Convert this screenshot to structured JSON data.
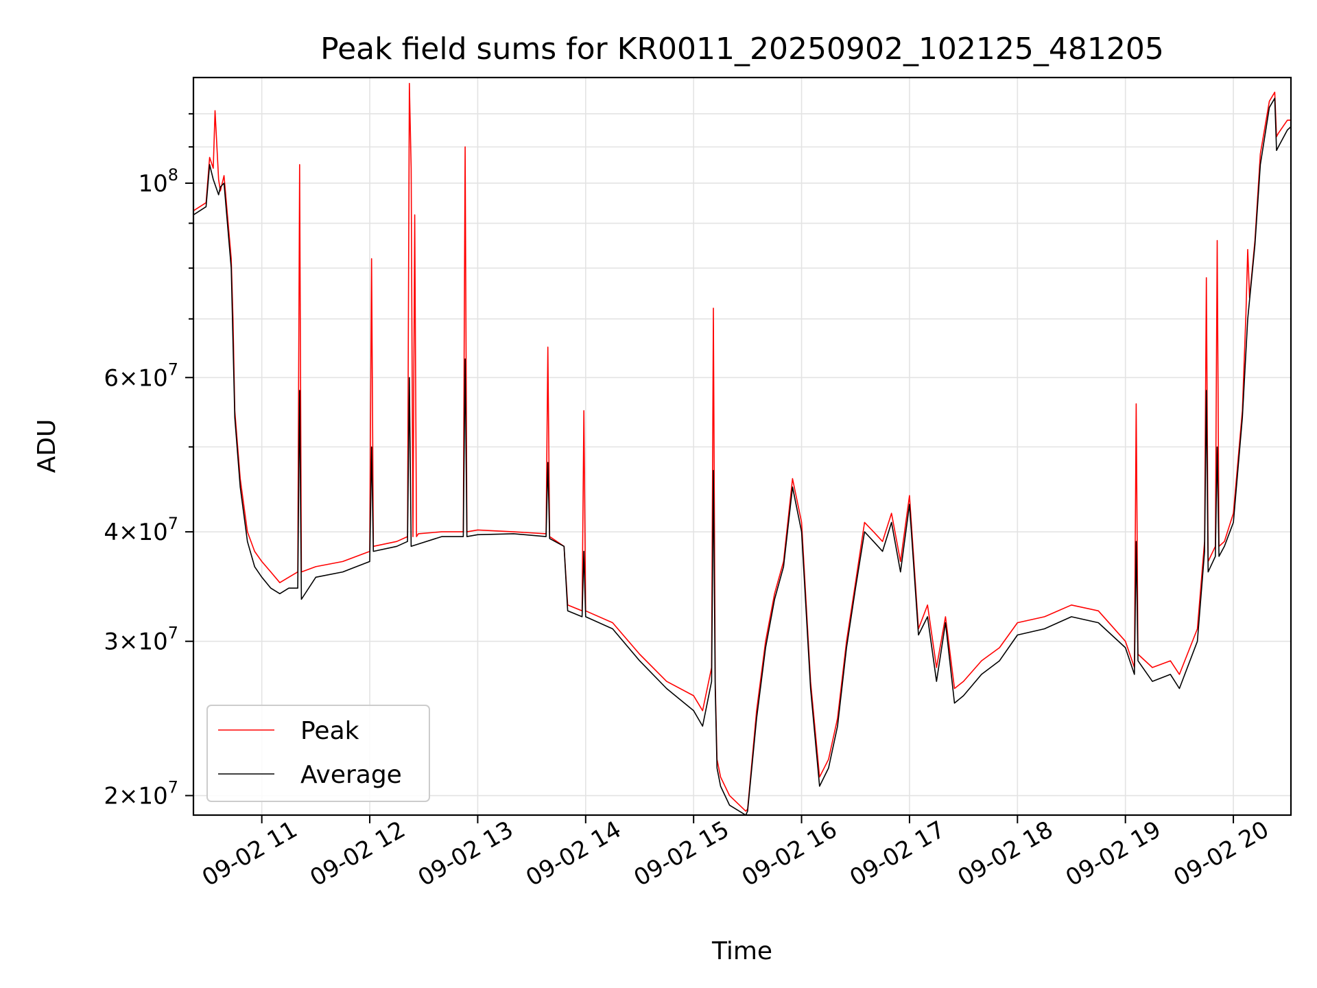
{
  "chart_data": {
    "type": "line",
    "title": "Peak field sums for KR0011_20250902_102125_481205",
    "xlabel": "Time",
    "ylabel": "ADU",
    "yscale": "log",
    "xlim": [
      "2025-09-02 10:22",
      "2025-09-02 20:32"
    ],
    "ylim": [
      19000000,
      132000000
    ],
    "grid": true,
    "legend_position": "lower-left",
    "x_tick_labels": [
      "09-02 11",
      "09-02 12",
      "09-02 13",
      "09-02 14",
      "09-02 15",
      "09-02 16",
      "09-02 17",
      "09-02 18",
      "09-02 19",
      "09-02 20"
    ],
    "x_ticks": [
      "2025-09-02 11:00",
      "2025-09-02 12:00",
      "2025-09-02 13:00",
      "2025-09-02 14:00",
      "2025-09-02 15:00",
      "2025-09-02 16:00",
      "2025-09-02 17:00",
      "2025-09-02 18:00",
      "2025-09-02 19:00",
      "2025-09-02 20:00"
    ],
    "y_ticks": [
      {
        "value": 20000000,
        "mantissa": "2",
        "exponent": "7"
      },
      {
        "value": 30000000,
        "mantissa": "3",
        "exponent": "7"
      },
      {
        "value": 40000000,
        "mantissa": "4",
        "exponent": "7"
      },
      {
        "value": 60000000,
        "mantissa": "6",
        "exponent": "7"
      },
      {
        "value": 100000000,
        "mantissa": "",
        "exponent": "8"
      }
    ],
    "y_minor_ticks": [
      50000000,
      70000000,
      80000000,
      90000000,
      110000000,
      120000000
    ],
    "series": [
      {
        "name": "Peak",
        "color": "#ff0000",
        "x": [
          "2025-09-02 10:22",
          "2025-09-02 10:29",
          "2025-09-02 10:31",
          "2025-09-02 10:33",
          "2025-09-02 10:34",
          "2025-09-02 10:36",
          "2025-09-02 10:37",
          "2025-09-02 10:39",
          "2025-09-02 10:43",
          "2025-09-02 10:44",
          "2025-09-02 10:45",
          "2025-09-02 10:48",
          "2025-09-02 10:52",
          "2025-09-02 10:56",
          "2025-09-02 11:00",
          "2025-09-02 11:05",
          "2025-09-02 11:10",
          "2025-09-02 11:15",
          "2025-09-02 11:20",
          "2025-09-02 11:21",
          "2025-09-02 11:22",
          "2025-09-02 11:30",
          "2025-09-02 11:45",
          "2025-09-02 12:00",
          "2025-09-02 12:01",
          "2025-09-02 12:02",
          "2025-09-02 12:15",
          "2025-09-02 12:21",
          "2025-09-02 12:22",
          "2025-09-02 12:23",
          "2025-09-02 12:24",
          "2025-09-02 12:25",
          "2025-09-02 12:26",
          "2025-09-02 12:27",
          "2025-09-02 12:40",
          "2025-09-02 12:52",
          "2025-09-02 12:53",
          "2025-09-02 12:54",
          "2025-09-02 13:00",
          "2025-09-02 13:20",
          "2025-09-02 13:38",
          "2025-09-02 13:39",
          "2025-09-02 13:40",
          "2025-09-02 13:48",
          "2025-09-02 13:50",
          "2025-09-02 13:58",
          "2025-09-02 13:59",
          "2025-09-02 14:00",
          "2025-09-02 14:15",
          "2025-09-02 14:30",
          "2025-09-02 14:45",
          "2025-09-02 15:00",
          "2025-09-02 15:05",
          "2025-09-02 15:10",
          "2025-09-02 15:11",
          "2025-09-02 15:12",
          "2025-09-02 15:13",
          "2025-09-02 15:15",
          "2025-09-02 15:20",
          "2025-09-02 15:29",
          "2025-09-02 15:30",
          "2025-09-02 15:35",
          "2025-09-02 15:40",
          "2025-09-02 15:45",
          "2025-09-02 15:50",
          "2025-09-02 15:55",
          "2025-09-02 16:00",
          "2025-09-02 16:05",
          "2025-09-02 16:10",
          "2025-09-02 16:15",
          "2025-09-02 16:20",
          "2025-09-02 16:25",
          "2025-09-02 16:30",
          "2025-09-02 16:35",
          "2025-09-02 16:40",
          "2025-09-02 16:45",
          "2025-09-02 16:50",
          "2025-09-02 16:55",
          "2025-09-02 17:00",
          "2025-09-02 17:05",
          "2025-09-02 17:10",
          "2025-09-02 17:15",
          "2025-09-02 17:20",
          "2025-09-02 17:25",
          "2025-09-02 17:30",
          "2025-09-02 17:40",
          "2025-09-02 17:50",
          "2025-09-02 18:00",
          "2025-09-02 18:15",
          "2025-09-02 18:30",
          "2025-09-02 18:45",
          "2025-09-02 19:00",
          "2025-09-02 19:05",
          "2025-09-02 19:06",
          "2025-09-02 19:07",
          "2025-09-02 19:15",
          "2025-09-02 19:25",
          "2025-09-02 19:30",
          "2025-09-02 19:40",
          "2025-09-02 19:44",
          "2025-09-02 19:45",
          "2025-09-02 19:46",
          "2025-09-02 19:50",
          "2025-09-02 19:51",
          "2025-09-02 19:52",
          "2025-09-02 19:55",
          "2025-09-02 20:00",
          "2025-09-02 20:05",
          "2025-09-02 20:07",
          "2025-09-02 20:08",
          "2025-09-02 20:09",
          "2025-09-02 20:12",
          "2025-09-02 20:15",
          "2025-09-02 20:20",
          "2025-09-02 20:23",
          "2025-09-02 20:24",
          "2025-09-02 20:25",
          "2025-09-02 20:30",
          "2025-09-02 20:32"
        ],
        "y": [
          93000000,
          95000000,
          107000000,
          104000000,
          121000000,
          101000000,
          98000000,
          102000000,
          82000000,
          70000000,
          55000000,
          46000000,
          40000000,
          38000000,
          37000000,
          36000000,
          35000000,
          35500000,
          36000000,
          105000000,
          36000000,
          36500000,
          37000000,
          38000000,
          82000000,
          38500000,
          39000000,
          39500000,
          130000000,
          104000000,
          39500000,
          92000000,
          39500000,
          39800000,
          40000000,
          40000000,
          110000000,
          40000000,
          40200000,
          40000000,
          39800000,
          65000000,
          39500000,
          38500000,
          33000000,
          32500000,
          55000000,
          32500000,
          31500000,
          29000000,
          27000000,
          26000000,
          25000000,
          28000000,
          72000000,
          27000000,
          22000000,
          21000000,
          20000000,
          19200000,
          19300000,
          25000000,
          30000000,
          34000000,
          37000000,
          46000000,
          41000000,
          27000000,
          21000000,
          22000000,
          24500000,
          30000000,
          35000000,
          41000000,
          40000000,
          39000000,
          42000000,
          37000000,
          44000000,
          31000000,
          33000000,
          28000000,
          32000000,
          26500000,
          27000000,
          28500000,
          29500000,
          31500000,
          32000000,
          33000000,
          32500000,
          30000000,
          28000000,
          56000000,
          29000000,
          28000000,
          28500000,
          27500000,
          31000000,
          39000000,
          78000000,
          37000000,
          38500000,
          86000000,
          38500000,
          39000000,
          42000000,
          55000000,
          71000000,
          84000000,
          74000000,
          86000000,
          108000000,
          124000000,
          127000000,
          113000000,
          114000000,
          118000000,
          118000000
        ]
      },
      {
        "name": "Average",
        "color": "#000000",
        "x": [
          "2025-09-02 10:22",
          "2025-09-02 10:29",
          "2025-09-02 10:31",
          "2025-09-02 10:33",
          "2025-09-02 10:36",
          "2025-09-02 10:37",
          "2025-09-02 10:39",
          "2025-09-02 10:43",
          "2025-09-02 10:45",
          "2025-09-02 10:48",
          "2025-09-02 10:52",
          "2025-09-02 10:56",
          "2025-09-02 11:00",
          "2025-09-02 11:05",
          "2025-09-02 11:10",
          "2025-09-02 11:15",
          "2025-09-02 11:20",
          "2025-09-02 11:21",
          "2025-09-02 11:22",
          "2025-09-02 11:30",
          "2025-09-02 11:45",
          "2025-09-02 12:00",
          "2025-09-02 12:01",
          "2025-09-02 12:02",
          "2025-09-02 12:15",
          "2025-09-02 12:21",
          "2025-09-02 12:22",
          "2025-09-02 12:23",
          "2025-09-02 12:40",
          "2025-09-02 12:52",
          "2025-09-02 12:53",
          "2025-09-02 12:54",
          "2025-09-02 13:00",
          "2025-09-02 13:20",
          "2025-09-02 13:38",
          "2025-09-02 13:39",
          "2025-09-02 13:40",
          "2025-09-02 13:48",
          "2025-09-02 13:50",
          "2025-09-02 13:58",
          "2025-09-02 13:59",
          "2025-09-02 14:00",
          "2025-09-02 14:15",
          "2025-09-02 14:30",
          "2025-09-02 14:45",
          "2025-09-02 15:00",
          "2025-09-02 15:05",
          "2025-09-02 15:10",
          "2025-09-02 15:11",
          "2025-09-02 15:12",
          "2025-09-02 15:13",
          "2025-09-02 15:15",
          "2025-09-02 15:20",
          "2025-09-02 15:29",
          "2025-09-02 15:30",
          "2025-09-02 15:35",
          "2025-09-02 15:40",
          "2025-09-02 15:45",
          "2025-09-02 15:50",
          "2025-09-02 15:55",
          "2025-09-02 16:00",
          "2025-09-02 16:05",
          "2025-09-02 16:10",
          "2025-09-02 16:15",
          "2025-09-02 16:20",
          "2025-09-02 16:25",
          "2025-09-02 16:30",
          "2025-09-02 16:35",
          "2025-09-02 16:40",
          "2025-09-02 16:45",
          "2025-09-02 16:50",
          "2025-09-02 16:55",
          "2025-09-02 17:00",
          "2025-09-02 17:05",
          "2025-09-02 17:10",
          "2025-09-02 17:15",
          "2025-09-02 17:20",
          "2025-09-02 17:25",
          "2025-09-02 17:30",
          "2025-09-02 17:40",
          "2025-09-02 17:50",
          "2025-09-02 18:00",
          "2025-09-02 18:15",
          "2025-09-02 18:30",
          "2025-09-02 18:45",
          "2025-09-02 19:00",
          "2025-09-02 19:05",
          "2025-09-02 19:06",
          "2025-09-02 19:07",
          "2025-09-02 19:15",
          "2025-09-02 19:25",
          "2025-09-02 19:30",
          "2025-09-02 19:40",
          "2025-09-02 19:44",
          "2025-09-02 19:45",
          "2025-09-02 19:46",
          "2025-09-02 19:50",
          "2025-09-02 19:51",
          "2025-09-02 19:52",
          "2025-09-02 19:55",
          "2025-09-02 20:00",
          "2025-09-02 20:05",
          "2025-09-02 20:08",
          "2025-09-02 20:12",
          "2025-09-02 20:15",
          "2025-09-02 20:20",
          "2025-09-02 20:23",
          "2025-09-02 20:24",
          "2025-09-02 20:25",
          "2025-09-02 20:30",
          "2025-09-02 20:32"
        ],
        "y": [
          92000000,
          94000000,
          105000000,
          101000000,
          97000000,
          99000000,
          100000000,
          80000000,
          54000000,
          45000000,
          39000000,
          36500000,
          35500000,
          34500000,
          34000000,
          34500000,
          34500000,
          58000000,
          33500000,
          35500000,
          36000000,
          37000000,
          50000000,
          38000000,
          38500000,
          39000000,
          60000000,
          38500000,
          39500000,
          39500000,
          63000000,
          39500000,
          39700000,
          39800000,
          39500000,
          48000000,
          39300000,
          38500000,
          32500000,
          32000000,
          38000000,
          32000000,
          31000000,
          28500000,
          26500000,
          25000000,
          24000000,
          27000000,
          47000000,
          26500000,
          21500000,
          20500000,
          19500000,
          19000000,
          19200000,
          24500000,
          29500000,
          33500000,
          36500000,
          45000000,
          40000000,
          26500000,
          20500000,
          21500000,
          24000000,
          29500000,
          34500000,
          40000000,
          39000000,
          38000000,
          41000000,
          36000000,
          43000000,
          30500000,
          32000000,
          27000000,
          31500000,
          25500000,
          26000000,
          27500000,
          28500000,
          30500000,
          31000000,
          32000000,
          31500000,
          29500000,
          27500000,
          39000000,
          28500000,
          27000000,
          27500000,
          26500000,
          30000000,
          38000000,
          58000000,
          36000000,
          37500000,
          50000000,
          37500000,
          38500000,
          41000000,
          54000000,
          70000000,
          85000000,
          105000000,
          122000000,
          125000000,
          109000000,
          110000000,
          115000000,
          116000000
        ]
      }
    ]
  }
}
